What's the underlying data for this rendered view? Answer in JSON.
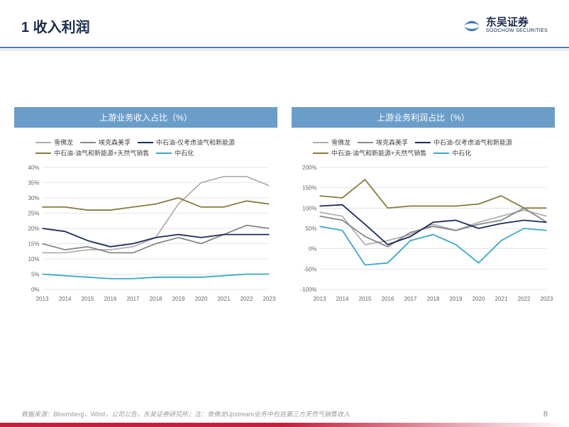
{
  "header": {
    "title": "1 收入利润",
    "logo_cn": "东吴证券",
    "logo_en": "SOOCHOW SECURITIES"
  },
  "colors": {
    "header_rule": "#4a7bb5",
    "chart_title_bg": "#6b9dc9",
    "chart_title_fg": "#ffffff",
    "grid": "#d0d0d0",
    "axis_text": "#666666",
    "red_bar": "#c41e3a"
  },
  "legend_colors": {
    "chevron": "#b0b0b0",
    "exxon": "#888888",
    "petro_oilgas": "#1a2c5e",
    "petro_oilgas_ng": "#8a7a3a",
    "sinopec": "#3aa8c9"
  },
  "series_labels": {
    "chevron": "雪佛龙",
    "exxon": "埃克森美孚",
    "petro_oilgas": "中石油-仅考虑油气和新能源",
    "petro_oilgas_ng": "中石油-油气和新能源+天然气销售",
    "sinopec": "中石化"
  },
  "chart_left": {
    "title": "上游业务收入占比（%）",
    "xlabels": [
      "2013",
      "2014",
      "2015",
      "2016",
      "2017",
      "2018",
      "2019",
      "2020",
      "2021",
      "2022",
      "2023"
    ],
    "ylim": [
      0,
      40
    ],
    "yticks": [
      0,
      5,
      10,
      15,
      20,
      25,
      30,
      35,
      40
    ],
    "series": {
      "chevron": [
        12,
        12,
        13,
        13,
        14,
        17,
        28,
        35,
        37,
        37,
        34
      ],
      "exxon": [
        15,
        13,
        14,
        12,
        12,
        15,
        17,
        15,
        18,
        21,
        20
      ],
      "petro_oilgas": [
        20,
        19,
        16,
        14,
        15,
        17,
        18,
        17,
        18,
        18,
        18
      ],
      "petro_oilgas_ng": [
        27,
        27,
        26,
        26,
        27,
        28,
        30,
        27,
        27,
        29,
        28
      ],
      "sinopec": [
        5,
        4.5,
        4,
        3.5,
        3.5,
        4,
        4,
        4,
        4.5,
        5,
        5
      ]
    }
  },
  "chart_right": {
    "title": "上游业务利润占比（%）",
    "xlabels": [
      "2013",
      "2014",
      "2015",
      "2016",
      "2017",
      "2018",
      "2019",
      "2020",
      "2021",
      "2022",
      "2023"
    ],
    "ylim": [
      -100,
      200
    ],
    "yticks": [
      -100,
      -50,
      0,
      50,
      100,
      150,
      200
    ],
    "series": {
      "chevron": [
        90,
        80,
        10,
        20,
        35,
        60,
        45,
        65,
        80,
        95,
        80
      ],
      "exxon": [
        80,
        70,
        30,
        5,
        40,
        55,
        45,
        60,
        70,
        100,
        65
      ],
      "petro_oilgas": [
        105,
        108,
        60,
        10,
        30,
        65,
        70,
        50,
        62,
        70,
        65
      ],
      "petro_oilgas_ng": [
        130,
        125,
        170,
        100,
        105,
        105,
        105,
        110,
        130,
        100,
        100
      ],
      "sinopec": [
        55,
        45,
        -40,
        -35,
        20,
        35,
        10,
        -35,
        20,
        50,
        45
      ]
    }
  },
  "footer": {
    "source": "数据来源：Bloomberg，Wind，公司公告，东吴证券研究所；注：雪佛龙Upstream业务中包括第三方天然气销售收入",
    "page": "8"
  }
}
